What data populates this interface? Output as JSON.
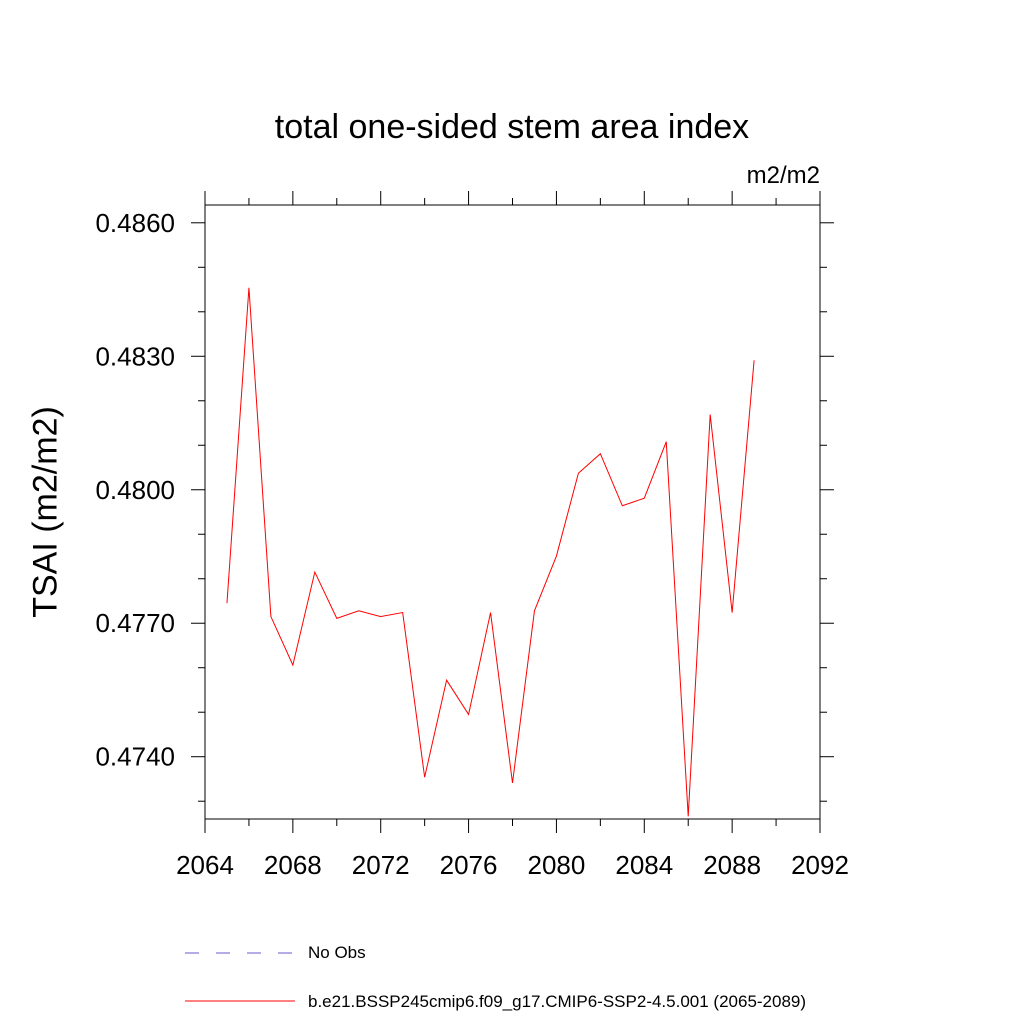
{
  "chart_data": {
    "type": "line",
    "title": "total one-sided stem area index",
    "units_label": "m2/m2",
    "ylabel": "TSAI  (m2/m2)",
    "xlim": [
      2064,
      2092
    ],
    "ylim": [
      0.4726,
      0.4864
    ],
    "x_ticks": [
      "2064",
      "2068",
      "2072",
      "2076",
      "2080",
      "2084",
      "2088",
      "2092"
    ],
    "y_ticks": [
      "0.4740",
      "0.4770",
      "0.4800",
      "0.4830",
      "0.4860"
    ],
    "series": [
      {
        "name": "b.e21.BSSP245cmip6.f09_g17.CMIP6-SSP2-4.5.001 (2065-2089)",
        "color": "#ff0000",
        "x": [
          2065,
          2066,
          2067,
          2068,
          2069,
          2070,
          2071,
          2072,
          2073,
          2074,
          2075,
          2076,
          2077,
          2078,
          2079,
          2080,
          2081,
          2082,
          2083,
          2084,
          2085,
          2086,
          2087,
          2088,
          2089
        ],
        "values": [
          0.47745,
          0.48454,
          0.47715,
          0.47606,
          0.47815,
          0.47711,
          0.47728,
          0.47715,
          0.47724,
          0.47354,
          0.47572,
          0.47495,
          0.47724,
          0.47341,
          0.47728,
          0.47851,
          0.48037,
          0.48081,
          0.47964,
          0.47981,
          0.48108,
          0.47266,
          0.48169,
          0.47724,
          0.48291
        ]
      }
    ],
    "legend": [
      {
        "label": "No Obs",
        "style": "dashed",
        "color": "#6a5acd"
      },
      {
        "label": "b.e21.BSSP245cmip6.f09_g17.CMIP6-SSP2-4.5.001 (2065-2089)",
        "style": "solid",
        "color": "#ff0000"
      }
    ]
  }
}
